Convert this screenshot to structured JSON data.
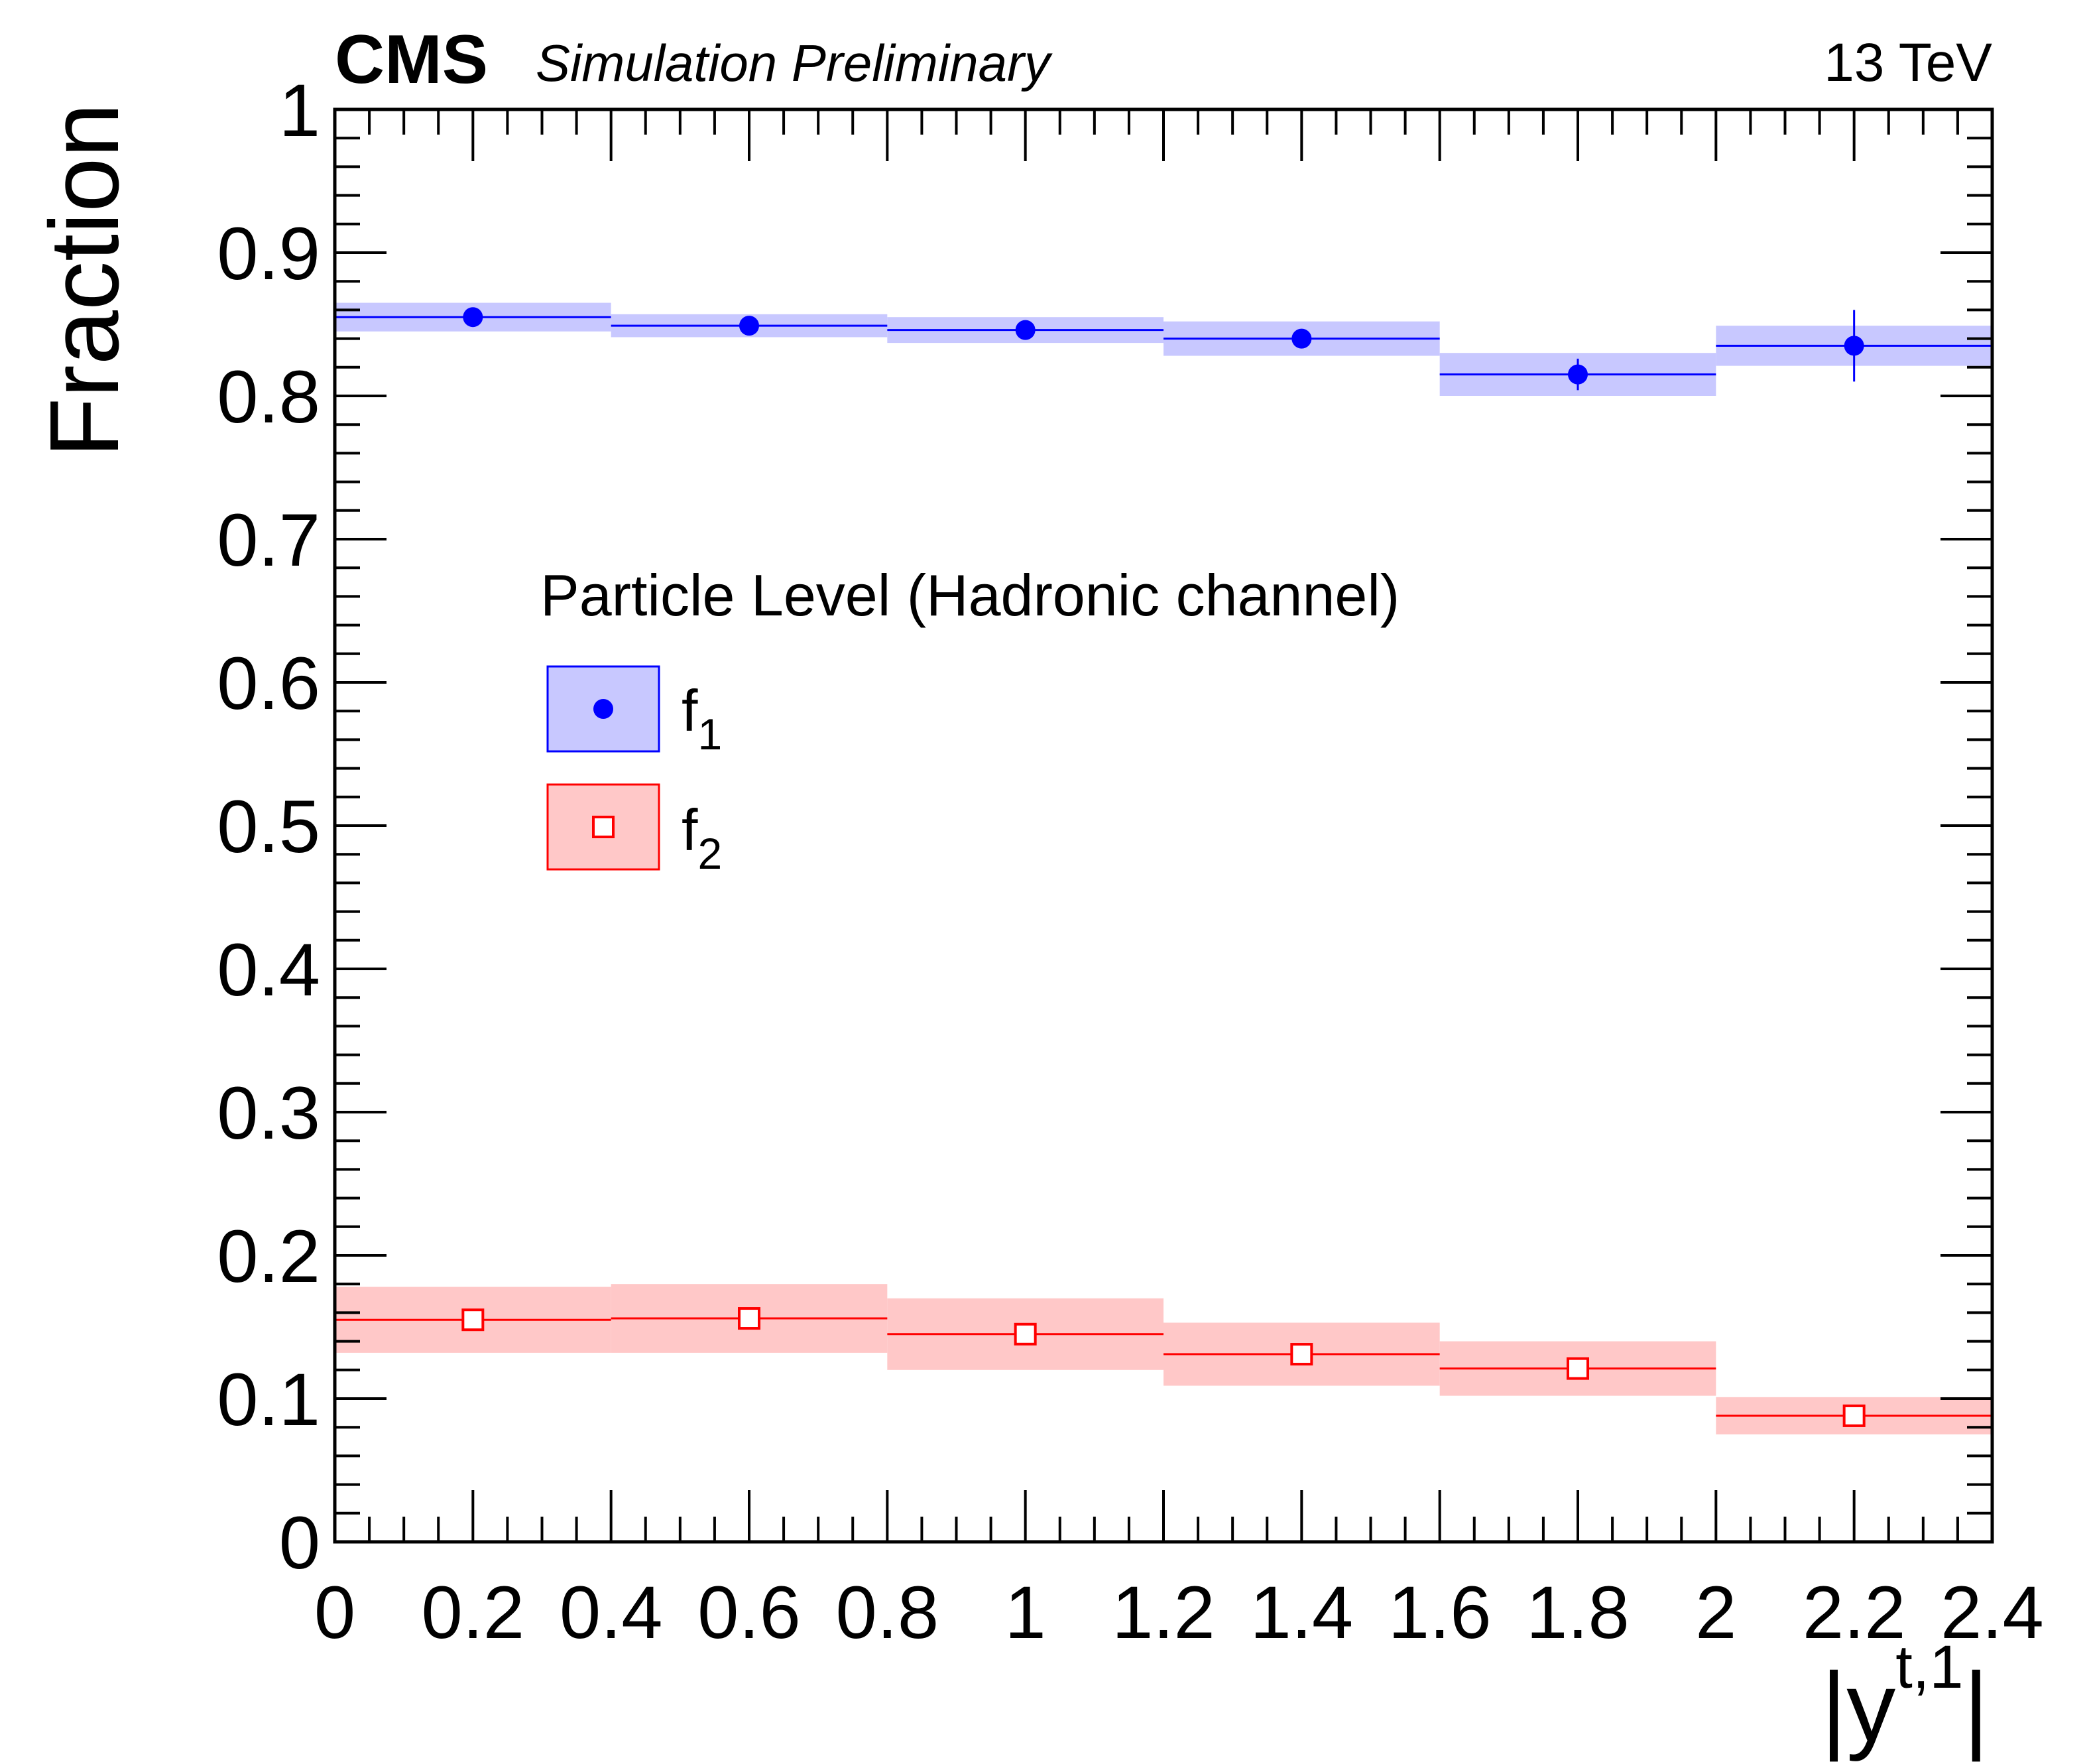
{
  "header": {
    "experiment": "CMS",
    "status": "Simulation Preliminary",
    "energy": "13 TeV"
  },
  "chart_data": {
    "type": "scatter",
    "title": "",
    "xlabel": {
      "base": "|y",
      "sup": "t,1",
      "close": "|"
    },
    "ylabel": "Fraction",
    "xlim": [
      0,
      2.4
    ],
    "ylim": [
      0,
      1
    ],
    "x_tick_labels": [
      "0",
      "0.2",
      "0.4",
      "0.6",
      "0.8",
      "1",
      "1.2",
      "1.4",
      "1.6",
      "1.8",
      "2",
      "2.2",
      "2.4"
    ],
    "y_tick_labels": [
      "0",
      "0.1",
      "0.2",
      "0.3",
      "0.4",
      "0.5",
      "0.6",
      "0.7",
      "0.8",
      "0.9",
      "1"
    ],
    "bin_edges": [
      0,
      0.4,
      0.8,
      1.2,
      1.6,
      2.0,
      2.4
    ],
    "legend": {
      "title": "Particle Level (Hadronic channel)",
      "placement": "upper-left-center"
    },
    "series": [
      {
        "name": "f",
        "name_sub": "1",
        "color": "#0000ff",
        "band_color": "#c8c8ff",
        "marker": "filled-circle",
        "values": [
          0.855,
          0.849,
          0.846,
          0.84,
          0.815,
          0.835
        ],
        "stat_err": [
          0.003,
          0.004,
          0.004,
          0.005,
          0.011,
          0.025
        ],
        "band_err": [
          0.01,
          0.008,
          0.009,
          0.012,
          0.015,
          0.014
        ]
      },
      {
        "name": "f",
        "name_sub": "2",
        "color": "#ff0000",
        "band_color": "#ffc8c8",
        "marker": "open-square",
        "values": [
          0.155,
          0.156,
          0.145,
          0.131,
          0.121,
          0.088
        ],
        "stat_err": [
          0.003,
          0.004,
          0.004,
          0.005,
          0.006,
          0.006
        ],
        "band_err": [
          0.023,
          0.024,
          0.025,
          0.022,
          0.019,
          0.013
        ]
      }
    ]
  }
}
